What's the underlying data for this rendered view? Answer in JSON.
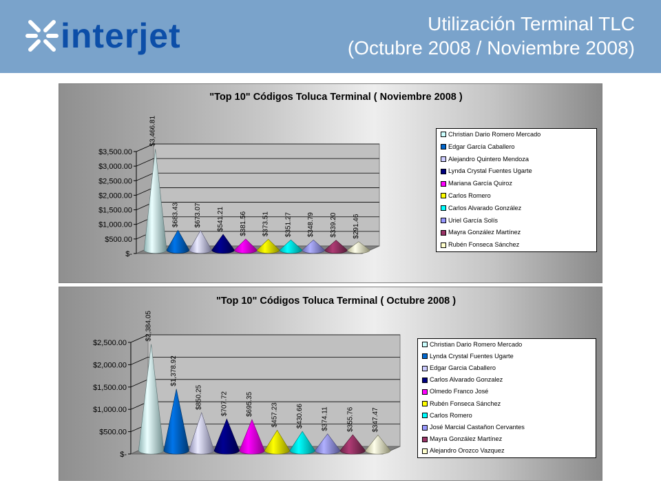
{
  "header": {
    "logo_text": "interjet",
    "title_line1": "Utilización Terminal TLC",
    "title_line2": "(Octubre 2008 / Noviembre 2008)"
  },
  "chart_data": [
    {
      "type": "bar",
      "shape": "cone-3d",
      "title": "\"Top 10\" Códigos Toluca Terminal ( Noviembre  2008 )",
      "categories": [
        "Christian Dario Romero Mercado",
        "Edgar García Caballero",
        "Alejandro Quintero Mendoza",
        "Lynda Crystal Fuentes Ugarte",
        "Mariana García Quiroz",
        "Carlos Romero",
        "Carlos Alvarado González",
        "Uriel García Solís",
        "Mayra González Martínez",
        "Rubén Fonseca Sánchez"
      ],
      "values": [
        3466.81,
        683.43,
        673.07,
        541.21,
        381.56,
        373.51,
        351.27,
        348.79,
        339.2,
        291.46
      ],
      "data_labels": [
        "$3,466.81",
        "$683.43",
        "$673.07",
        "$541.21",
        "$381.56",
        "$373.51",
        "$351.27",
        "$348.79",
        "$339.20",
        "$291.46"
      ],
      "colors": [
        "#ccffff",
        "#0066cc",
        "#ccccff",
        "#000080",
        "#ff00ff",
        "#ffff00",
        "#00ffff",
        "#9999ff",
        "#993366",
        "#ffffcc"
      ],
      "y_ticks": [
        "$-",
        "$500.00",
        "$1,000.00",
        "$1,500.00",
        "$2,000.00",
        "$2,500.00",
        "$3,000.00",
        "$3,500.00"
      ],
      "ylim": [
        0,
        3500
      ],
      "grid": true,
      "legend": "right"
    },
    {
      "type": "bar",
      "shape": "cone-3d",
      "title": "\"Top 10\" Códigos Toluca Terminal ( Octubre  2008 )",
      "categories": [
        "Christian Dario Romero Mercado",
        "Lynda Crystal Fuentes Ugarte",
        "Edgar Garcia Caballero",
        "Carlos Alvarado Gonzalez",
        "Olmedo Franco José",
        "Rubén Fonseca Sánchez",
        "Carlos Romero",
        "José Marcial Castañon Cervantes",
        "Mayra González Martínez",
        "Alejandro Orozco Vazquez"
      ],
      "values": [
        2384.05,
        1378.92,
        850.25,
        707.72,
        695.35,
        457.23,
        430.66,
        374.11,
        355.76,
        347.47
      ],
      "data_labels": [
        "$2,384.05",
        "$1,378.92",
        "$850.25",
        "$707.72",
        "$695.35",
        "$457.23",
        "$430.66",
        "$374.11",
        "$355.76",
        "$347.47"
      ],
      "colors": [
        "#ccffff",
        "#0066cc",
        "#ccccff",
        "#000080",
        "#ff00ff",
        "#ffff00",
        "#00ffff",
        "#9999ff",
        "#993366",
        "#ffffcc"
      ],
      "y_ticks": [
        "$-",
        "$500.00",
        "$1,000.00",
        "$1,500.00",
        "$2,000.00",
        "$2,500.00"
      ],
      "ylim": [
        0,
        2500
      ],
      "grid": true,
      "legend": "right"
    }
  ]
}
